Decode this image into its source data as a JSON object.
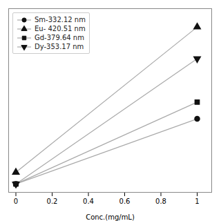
{
  "chart_data": {
    "type": "line",
    "xlabel": "Conc.(mg/mL)",
    "x": [
      0.0,
      1.0
    ],
    "series": [
      {
        "name": "Sm-332.12 nm",
        "color": "#aaaaaa",
        "marker": "circle",
        "values": [
          0.03,
          0.42
        ]
      },
      {
        "name": "Eu- 420.51 nm",
        "color": "#aaaaaa",
        "marker": "triangle-up",
        "values": [
          0.1,
          0.97
        ]
      },
      {
        "name": "Gd-379.64 nm",
        "color": "#aaaaaa",
        "marker": "square",
        "values": [
          0.03,
          0.52
        ]
      },
      {
        "name": "Dy-353.17 nm",
        "color": "#aaaaaa",
        "marker": "triangle-down",
        "values": [
          0.03,
          0.78
        ]
      }
    ],
    "xlim": [
      -0.04,
      1.08
    ],
    "ylim": [
      -0.02,
      1.08
    ],
    "xticks": [
      0.0,
      0.2,
      0.4,
      0.6,
      0.8,
      1.0
    ],
    "tick_labels": "x",
    "grid": false,
    "legend": "upper left"
  }
}
